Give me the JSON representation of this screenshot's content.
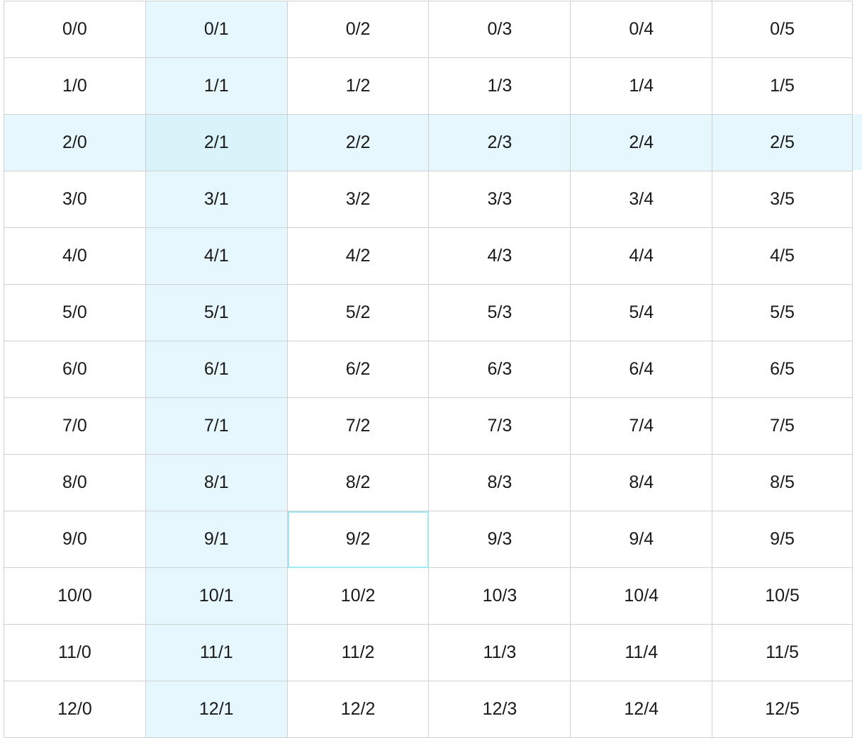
{
  "grid": {
    "highlight_color": "#e6f8fd",
    "selection_border_color": "#9ee9f2",
    "highlighted_column": 1,
    "highlighted_row": 2,
    "selected_cell": {
      "row": 9,
      "col": 2
    },
    "rows": [
      [
        "0/0",
        "0/1",
        "0/2",
        "0/3",
        "0/4",
        "0/5"
      ],
      [
        "1/0",
        "1/1",
        "1/2",
        "1/3",
        "1/4",
        "1/5"
      ],
      [
        "2/0",
        "2/1",
        "2/2",
        "2/3",
        "2/4",
        "2/5"
      ],
      [
        "3/0",
        "3/1",
        "3/2",
        "3/3",
        "3/4",
        "3/5"
      ],
      [
        "4/0",
        "4/1",
        "4/2",
        "4/3",
        "4/4",
        "4/5"
      ],
      [
        "5/0",
        "5/1",
        "5/2",
        "5/3",
        "5/4",
        "5/5"
      ],
      [
        "6/0",
        "6/1",
        "6/2",
        "6/3",
        "6/4",
        "6/5"
      ],
      [
        "7/0",
        "7/1",
        "7/2",
        "7/3",
        "7/4",
        "7/5"
      ],
      [
        "8/0",
        "8/1",
        "8/2",
        "8/3",
        "8/4",
        "8/5"
      ],
      [
        "9/0",
        "9/1",
        "9/2",
        "9/3",
        "9/4",
        "9/5"
      ],
      [
        "10/0",
        "10/1",
        "10/2",
        "10/3",
        "10/4",
        "10/5"
      ],
      [
        "11/0",
        "11/1",
        "11/2",
        "11/3",
        "11/4",
        "11/5"
      ],
      [
        "12/0",
        "12/1",
        "12/2",
        "12/3",
        "12/4",
        "12/5"
      ]
    ]
  }
}
